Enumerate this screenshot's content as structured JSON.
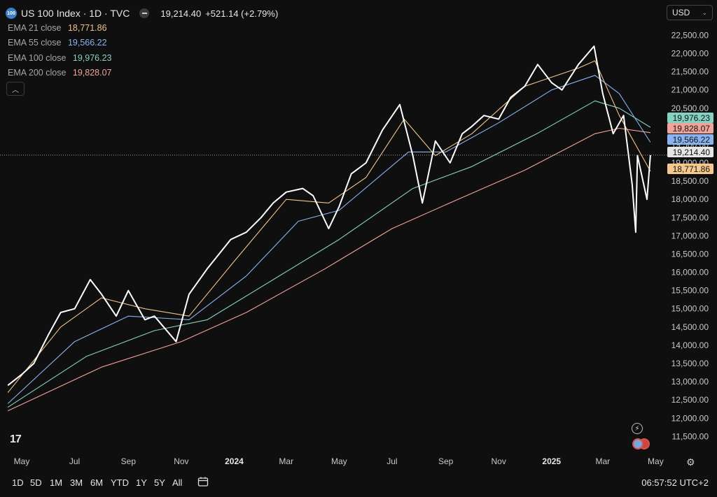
{
  "header": {
    "symbol_badge": "100",
    "title": "US 100 Index · 1D · TVC",
    "last_price": "19,214.40",
    "change": "+521.14 (+2.79%)"
  },
  "indicators": [
    {
      "label": "EMA",
      "param": "21 close",
      "value": "18,771.86",
      "color": "#f0c38a"
    },
    {
      "label": "EMA",
      "param": "55 close",
      "value": "19,566.22",
      "color": "#8ab4f0"
    },
    {
      "label": "EMA",
      "param": "100 close",
      "value": "19,976.23",
      "color": "#86d2c2"
    },
    {
      "label": "EMA",
      "param": "200 close",
      "value": "19,828.07",
      "color": "#f0a39a"
    }
  ],
  "currency": "USD",
  "price_tags": [
    {
      "value": "19,976.23",
      "bg": "#86d2c2"
    },
    {
      "value": "19,828.07",
      "bg": "#f0a39a"
    },
    {
      "value": "19,566.22",
      "bg": "#8ab4f0"
    },
    {
      "value": "19,214.40",
      "bg": "#e6e6e6"
    },
    {
      "value": "18,771.86",
      "bg": "#f5c98e"
    }
  ],
  "timeframes": [
    "1D",
    "5D",
    "1M",
    "3M",
    "6M",
    "YTD",
    "1Y",
    "5Y",
    "All"
  ],
  "clock": "06:57:52 UTC+2",
  "chart_data": {
    "type": "line",
    "title": "US 100 Index · 1D · TVC",
    "y_ticks": [
      "22,500.00",
      "22,000.00",
      "21,500.00",
      "21,000.00",
      "20,500.00",
      "20,000.00",
      "19,500.00",
      "19,000.00",
      "18,500.00",
      "18,000.00",
      "17,500.00",
      "17,000.00",
      "16,500.00",
      "16,000.00",
      "15,500.00",
      "15,000.00",
      "14,500.00",
      "14,000.00",
      "13,500.00",
      "13,000.00",
      "12,500.00",
      "12,000.00",
      "11,500.00"
    ],
    "x_ticks": [
      "May",
      "Jul",
      "Sep",
      "Nov",
      "2024",
      "Mar",
      "May",
      "Jul",
      "Sep",
      "Nov",
      "2025",
      "Mar",
      "May"
    ],
    "ylim": [
      11200,
      22700
    ],
    "series": [
      {
        "name": "US 100 Index",
        "color": "#ffffff",
        "x": [
          "2023-04-15",
          "2023-05-01",
          "2023-05-15",
          "2023-06-01",
          "2023-06-15",
          "2023-07-01",
          "2023-07-19",
          "2023-08-01",
          "2023-08-18",
          "2023-09-01",
          "2023-09-20",
          "2023-10-01",
          "2023-10-26",
          "2023-11-10",
          "2023-12-01",
          "2023-12-28",
          "2024-01-15",
          "2024-02-01",
          "2024-02-15",
          "2024-03-01",
          "2024-03-20",
          "2024-04-01",
          "2024-04-19",
          "2024-05-01",
          "2024-05-15",
          "2024-06-01",
          "2024-06-20",
          "2024-07-10",
          "2024-07-25",
          "2024-08-05",
          "2024-08-20",
          "2024-09-06",
          "2024-09-20",
          "2024-10-01",
          "2024-10-15",
          "2024-11-01",
          "2024-11-15",
          "2024-12-01",
          "2024-12-16",
          "2025-01-01",
          "2025-01-13",
          "2025-02-01",
          "2025-02-19",
          "2025-03-01",
          "2025-03-13",
          "2025-03-25",
          "2025-04-04",
          "2025-04-08",
          "2025-04-10",
          "2025-04-21",
          "2025-04-25"
        ],
        "values": [
          12900,
          13200,
          13500,
          14300,
          14900,
          15000,
          15800,
          15400,
          14800,
          15500,
          14700,
          14800,
          14100,
          15400,
          16100,
          16900,
          17100,
          17500,
          17900,
          18200,
          18300,
          18100,
          17200,
          17800,
          18700,
          19000,
          19900,
          20600,
          19200,
          17900,
          19600,
          19000,
          19800,
          20000,
          20300,
          20200,
          20800,
          21100,
          21700,
          21200,
          21000,
          21700,
          22200,
          20900,
          19800,
          20300,
          18400,
          17100,
          19200,
          18000,
          19214
        ]
      },
      {
        "name": "EMA 21",
        "color": "#f0c38a",
        "x": [
          "2023-04-15",
          "2023-06-15",
          "2023-08-01",
          "2023-09-20",
          "2023-11-10",
          "2024-01-01",
          "2024-03-01",
          "2024-04-19",
          "2024-06-01",
          "2024-07-15",
          "2024-08-20",
          "2024-10-01",
          "2024-12-01",
          "2025-02-01",
          "2025-02-20",
          "2025-03-20",
          "2025-04-25"
        ],
        "values": [
          12700,
          14500,
          15300,
          15000,
          14800,
          16300,
          18000,
          17900,
          18600,
          20200,
          19200,
          19800,
          21100,
          21600,
          21800,
          20300,
          18772
        ]
      },
      {
        "name": "EMA 55",
        "color": "#8ab4f0",
        "x": [
          "2023-04-15",
          "2023-07-01",
          "2023-09-01",
          "2023-11-10",
          "2024-01-15",
          "2024-03-15",
          "2024-05-01",
          "2024-07-20",
          "2024-09-01",
          "2024-11-01",
          "2025-01-01",
          "2025-02-20",
          "2025-03-20",
          "2025-04-25"
        ],
        "values": [
          12400,
          14100,
          14800,
          14700,
          15900,
          17400,
          17700,
          19300,
          19300,
          20100,
          21000,
          21400,
          20900,
          19566
        ]
      },
      {
        "name": "EMA 100",
        "color": "#86d2c2",
        "x": [
          "2023-04-15",
          "2023-07-15",
          "2023-10-01",
          "2023-12-01",
          "2024-02-15",
          "2024-05-01",
          "2024-07-25",
          "2024-10-01",
          "2024-12-15",
          "2025-02-20",
          "2025-03-20",
          "2025-04-25"
        ],
        "values": [
          12300,
          13700,
          14400,
          14700,
          15800,
          16900,
          18300,
          18900,
          19800,
          20700,
          20500,
          19976
        ]
      },
      {
        "name": "EMA 200",
        "color": "#f0a39a",
        "x": [
          "2023-04-15",
          "2023-08-01",
          "2023-11-01",
          "2024-01-15",
          "2024-04-15",
          "2024-07-01",
          "2024-09-15",
          "2024-12-01",
          "2025-02-20",
          "2025-03-20",
          "2025-04-25"
        ],
        "values": [
          12200,
          13400,
          14100,
          14900,
          16100,
          17200,
          18000,
          18800,
          19800,
          19950,
          19828
        ]
      }
    ],
    "current_price_line": 19214.4
  }
}
